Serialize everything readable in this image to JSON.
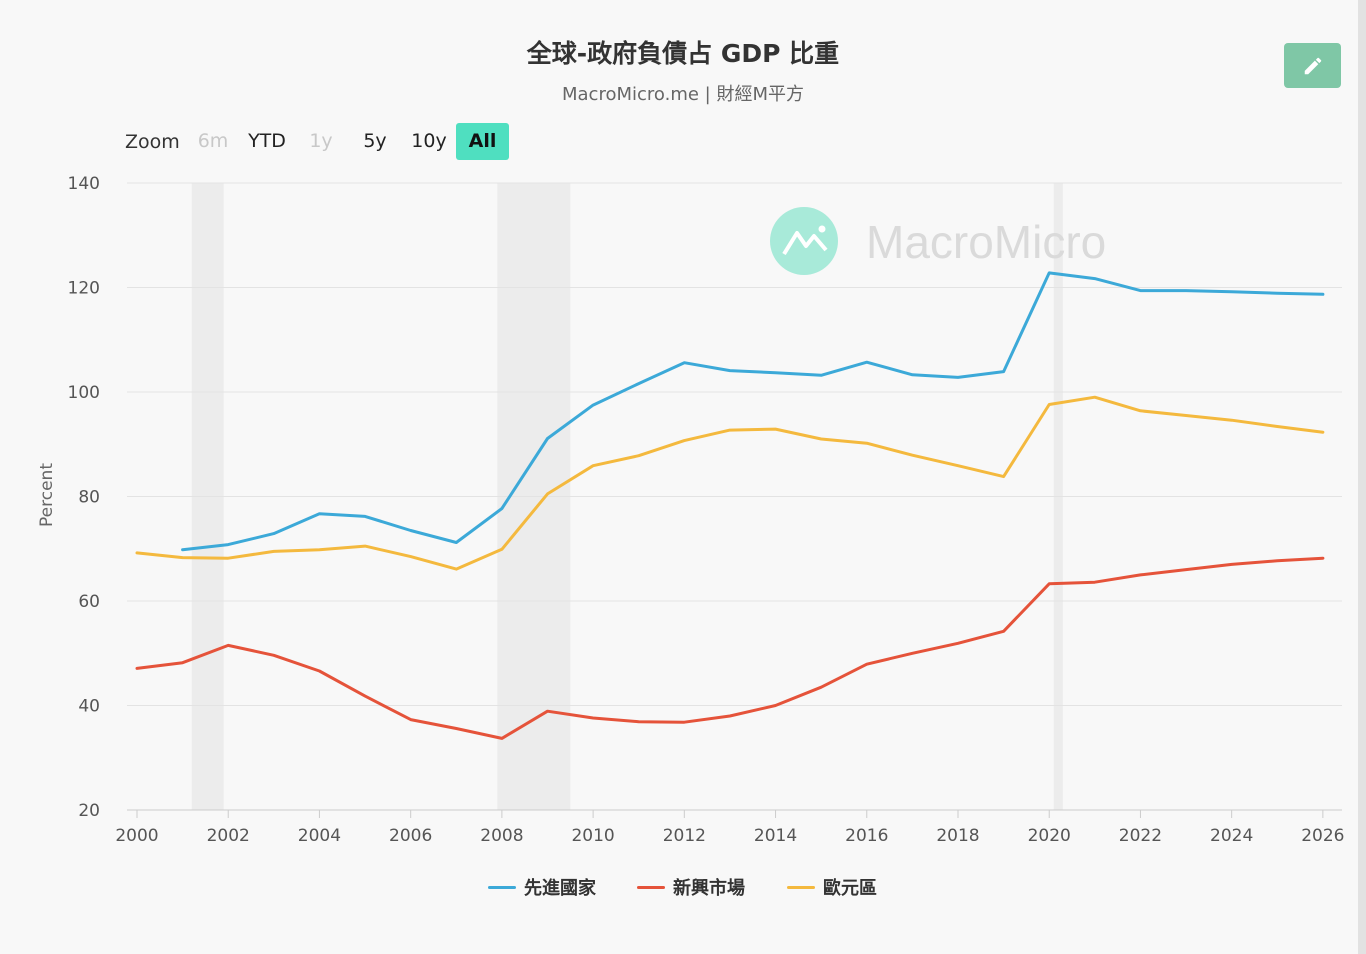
{
  "header": {
    "title": "全球-政府負債占 GDP 比重",
    "subtitle": "MacroMicro.me | 財經M平方"
  },
  "toolbar": {
    "edit_icon": "pencil-icon"
  },
  "zoom": {
    "label": "Zoom",
    "buttons": [
      {
        "label": "6m",
        "state": "disabled"
      },
      {
        "label": "YTD",
        "state": "normal"
      },
      {
        "label": "1y",
        "state": "disabled"
      },
      {
        "label": "5y",
        "state": "normal"
      },
      {
        "label": "10y",
        "state": "normal"
      },
      {
        "label": "All",
        "state": "active"
      }
    ]
  },
  "watermark": {
    "text": "MacroMicro",
    "logo_color": "#a8ead9"
  },
  "colors": {
    "accent": "#4fdfc0",
    "edit_button": "#7fc7a6"
  },
  "chart_data": {
    "type": "line",
    "ylabel": "Percent",
    "ylim": [
      20,
      140
    ],
    "yticks": [
      20,
      40,
      60,
      80,
      100,
      120,
      140
    ],
    "xlim": [
      2000,
      2026.2
    ],
    "xticks": [
      2000,
      2002,
      2004,
      2006,
      2008,
      2010,
      2012,
      2014,
      2016,
      2018,
      2020,
      2022,
      2024,
      2026
    ],
    "grid": true,
    "legend_position": "bottom",
    "shaded_periods": [
      [
        2001.2,
        2001.9
      ],
      [
        2007.9,
        2009.5
      ],
      [
        2020.1,
        2020.3
      ]
    ],
    "series": [
      {
        "name": "先進國家",
        "color": "#3ca9d8",
        "x": [
          2001,
          2002,
          2003,
          2004,
          2005,
          2006,
          2007,
          2008,
          2009,
          2010,
          2011,
          2012,
          2013,
          2014,
          2015,
          2016,
          2017,
          2018,
          2019,
          2020,
          2021,
          2022,
          2023,
          2024,
          2025,
          2026
        ],
        "values": [
          69.8,
          70.8,
          72.9,
          76.7,
          76.2,
          73.5,
          71.2,
          77.7,
          91.1,
          97.5,
          101.6,
          105.6,
          104.1,
          103.7,
          103.2,
          105.7,
          103.3,
          102.8,
          103.9,
          122.8,
          121.7,
          119.4,
          119.4,
          119.2,
          118.9,
          118.7
        ]
      },
      {
        "name": "新興市場",
        "color": "#e5533a",
        "x": [
          2000,
          2001,
          2002,
          2003,
          2004,
          2005,
          2006,
          2007,
          2008,
          2009,
          2010,
          2011,
          2012,
          2013,
          2014,
          2015,
          2016,
          2017,
          2018,
          2019,
          2020,
          2021,
          2022,
          2023,
          2024,
          2025,
          2026
        ],
        "values": [
          47.1,
          48.2,
          51.5,
          49.6,
          46.6,
          41.8,
          37.3,
          35.6,
          33.7,
          38.9,
          37.6,
          36.9,
          36.8,
          38.0,
          40.0,
          43.5,
          47.9,
          50.0,
          51.9,
          54.2,
          63.3,
          63.6,
          65.0,
          66.0,
          67.0,
          67.7,
          68.2
        ]
      },
      {
        "name": "歐元區",
        "color": "#f4b93e",
        "x": [
          2000,
          2001,
          2002,
          2003,
          2004,
          2005,
          2006,
          2007,
          2008,
          2009,
          2010,
          2011,
          2012,
          2013,
          2014,
          2015,
          2016,
          2017,
          2018,
          2019,
          2020,
          2021,
          2022,
          2023,
          2024,
          2025,
          2026
        ],
        "values": [
          69.2,
          68.3,
          68.2,
          69.5,
          69.8,
          70.5,
          68.5,
          66.1,
          69.9,
          80.5,
          85.9,
          87.8,
          90.7,
          92.7,
          92.9,
          91.0,
          90.2,
          87.9,
          85.9,
          83.8,
          97.6,
          99.0,
          96.4,
          95.5,
          94.6,
          93.4,
          92.3
        ]
      }
    ]
  }
}
